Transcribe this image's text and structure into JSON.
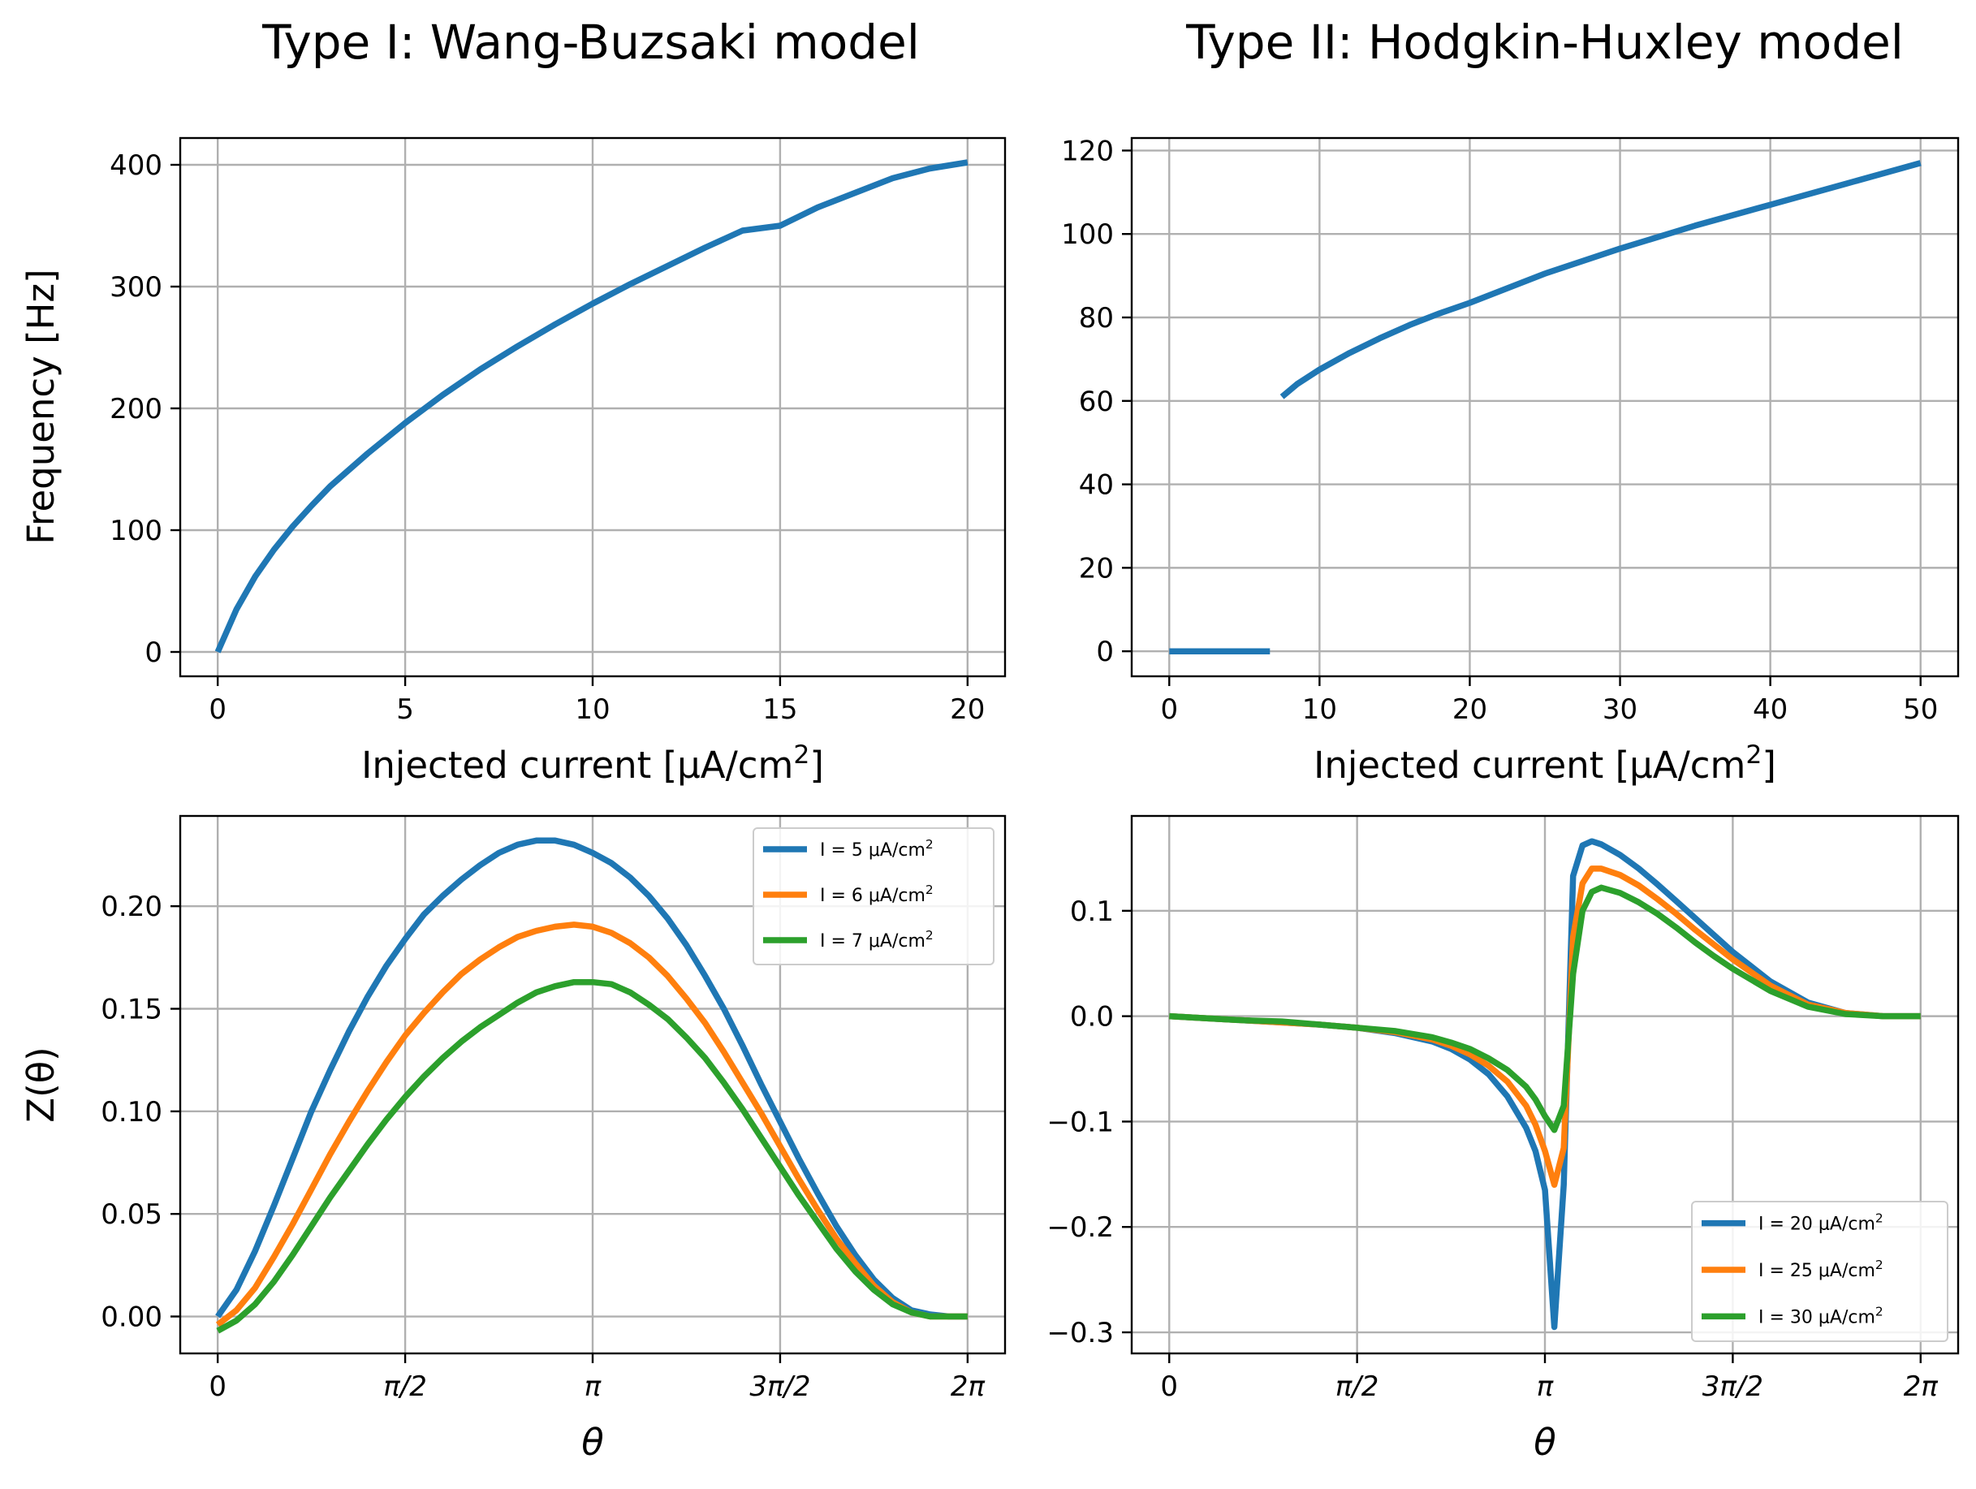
{
  "column_titles": [
    "Type I: Wang-Buzsaki model",
    "Type II: Hodgkin-Huxley model"
  ],
  "colors": {
    "blue": "#1f77b4",
    "orange": "#ff7f0e",
    "green": "#2ca02c"
  },
  "chart_data": [
    {
      "id": "wb_fi",
      "type": "line",
      "title": "Type I: Wang-Buzsaki model",
      "xlabel": "Injected current [μA/cm²]",
      "ylabel": "Frequency [Hz]",
      "xlim": [
        -1,
        21
      ],
      "ylim": [
        -20,
        422
      ],
      "xticks": [
        0,
        5,
        10,
        15,
        20
      ],
      "xtick_labels": [
        "0",
        "5",
        "10",
        "15",
        "20"
      ],
      "yticks": [
        0,
        100,
        200,
        300,
        400
      ],
      "ytick_labels": [
        "0",
        "100",
        "200",
        "300",
        "400"
      ],
      "grid": true,
      "series": [
        {
          "color": "#1f77b4",
          "x": [
            0,
            0.5,
            1,
            1.5,
            2,
            2.5,
            3,
            4,
            5,
            6,
            7,
            8,
            9,
            10,
            11,
            12,
            13,
            14,
            15,
            16,
            17,
            18,
            19,
            20
          ],
          "y": [
            0,
            35,
            62,
            84,
            103,
            120,
            136,
            163,
            188,
            211,
            232,
            251,
            269,
            286,
            302,
            317,
            332,
            346,
            350,
            365,
            377,
            389,
            397,
            402
          ]
        }
      ]
    },
    {
      "id": "hh_fi",
      "type": "line",
      "title": "Type II: Hodgkin-Huxley model",
      "xlabel": "Injected current [μA/cm²]",
      "ylabel": "",
      "xlim": [
        -2.5,
        52.5
      ],
      "ylim": [
        -6,
        123
      ],
      "xticks": [
        0,
        10,
        20,
        30,
        40,
        50
      ],
      "xtick_labels": [
        "0",
        "10",
        "20",
        "30",
        "40",
        "50"
      ],
      "yticks": [
        0,
        20,
        40,
        60,
        80,
        100,
        120
      ],
      "ytick_labels": [
        "0",
        "20",
        "40",
        "60",
        "80",
        "100",
        "120"
      ],
      "grid": true,
      "series": [
        {
          "color": "#1f77b4",
          "x": [
            0,
            1,
            2,
            3,
            4,
            5,
            6,
            6.7
          ],
          "y": [
            0,
            0,
            0,
            0,
            0,
            0,
            0,
            0
          ]
        },
        {
          "color": "#1f77b4",
          "x": [
            7.5,
            8.5,
            10,
            12,
            14,
            16,
            18,
            20,
            25,
            30,
            35,
            40,
            45,
            50
          ],
          "y": [
            61,
            64,
            67.5,
            71.5,
            75,
            78.2,
            81,
            83.5,
            90.5,
            96.5,
            102,
            107,
            112,
            117
          ]
        }
      ]
    },
    {
      "id": "wb_prc",
      "type": "line",
      "title": "",
      "xlabel": "θ",
      "ylabel": "Z(θ)",
      "xlim": [
        -0.314,
        6.597
      ],
      "ylim": [
        -0.018,
        0.244
      ],
      "xticks": [
        0,
        1.5708,
        3.1416,
        4.7124,
        6.2832
      ],
      "xtick_labels": [
        "0",
        "π/2",
        "π",
        "3π/2",
        "2π"
      ],
      "yticks": [
        0,
        0.05,
        0.1,
        0.15,
        0.2
      ],
      "ytick_labels": [
        "0.00",
        "0.05",
        "0.10",
        "0.15",
        "0.20"
      ],
      "grid": true,
      "legend": {
        "position": "upper right",
        "entries": [
          "I = 5 μA/cm²",
          "I = 6 μA/cm²",
          "I = 7 μA/cm²"
        ]
      },
      "series": [
        {
          "name": "I = 5 μA/cm²",
          "color": "#1f77b4",
          "x": [
            0,
            0.157,
            0.314,
            0.471,
            0.628,
            0.785,
            0.942,
            1.1,
            1.257,
            1.414,
            1.571,
            1.728,
            1.885,
            2.042,
            2.199,
            2.356,
            2.513,
            2.67,
            2.827,
            2.985,
            3.142,
            3.299,
            3.456,
            3.613,
            3.77,
            3.927,
            4.084,
            4.241,
            4.398,
            4.555,
            4.712,
            4.869,
            5.027,
            5.184,
            5.341,
            5.498,
            5.655,
            5.812,
            5.969,
            6.126,
            6.283
          ],
          "y": [
            0,
            0.013,
            0.032,
            0.054,
            0.077,
            0.1,
            0.12,
            0.139,
            0.156,
            0.171,
            0.184,
            0.196,
            0.205,
            0.213,
            0.22,
            0.226,
            0.23,
            0.232,
            0.232,
            0.23,
            0.226,
            0.221,
            0.214,
            0.205,
            0.194,
            0.181,
            0.166,
            0.15,
            0.132,
            0.113,
            0.095,
            0.077,
            0.06,
            0.044,
            0.03,
            0.018,
            0.009,
            0.003,
            0.001,
            0,
            0
          ]
        },
        {
          "name": "I = 6 μA/cm²",
          "color": "#ff7f0e",
          "x": [
            0,
            0.157,
            0.314,
            0.471,
            0.628,
            0.785,
            0.942,
            1.1,
            1.257,
            1.414,
            1.571,
            1.728,
            1.885,
            2.042,
            2.199,
            2.356,
            2.513,
            2.67,
            2.827,
            2.985,
            3.142,
            3.299,
            3.456,
            3.613,
            3.77,
            3.927,
            4.084,
            4.241,
            4.398,
            4.555,
            4.712,
            4.869,
            5.027,
            5.184,
            5.341,
            5.498,
            5.655,
            5.812,
            5.969,
            6.126,
            6.283
          ],
          "y": [
            -0.004,
            0.003,
            0.014,
            0.029,
            0.045,
            0.062,
            0.079,
            0.095,
            0.11,
            0.124,
            0.137,
            0.148,
            0.158,
            0.167,
            0.174,
            0.18,
            0.185,
            0.188,
            0.19,
            0.191,
            0.19,
            0.187,
            0.182,
            0.175,
            0.166,
            0.155,
            0.143,
            0.129,
            0.114,
            0.099,
            0.083,
            0.067,
            0.052,
            0.038,
            0.026,
            0.015,
            0.007,
            0.002,
            0,
            0,
            0
          ]
        },
        {
          "name": "I = 7 μA/cm²",
          "color": "#2ca02c",
          "x": [
            0,
            0.157,
            0.314,
            0.471,
            0.628,
            0.785,
            0.942,
            1.1,
            1.257,
            1.414,
            1.571,
            1.728,
            1.885,
            2.042,
            2.199,
            2.356,
            2.513,
            2.67,
            2.827,
            2.985,
            3.142,
            3.299,
            3.456,
            3.613,
            3.77,
            3.927,
            4.084,
            4.241,
            4.398,
            4.555,
            4.712,
            4.869,
            5.027,
            5.184,
            5.341,
            5.498,
            5.655,
            5.812,
            5.969,
            6.126,
            6.283
          ],
          "y": [
            -0.007,
            -0.002,
            0.006,
            0.017,
            0.03,
            0.044,
            0.058,
            0.071,
            0.084,
            0.096,
            0.107,
            0.117,
            0.126,
            0.134,
            0.141,
            0.147,
            0.153,
            0.158,
            0.161,
            0.163,
            0.163,
            0.162,
            0.158,
            0.152,
            0.145,
            0.136,
            0.126,
            0.114,
            0.101,
            0.087,
            0.073,
            0.059,
            0.046,
            0.033,
            0.022,
            0.013,
            0.006,
            0.002,
            0,
            0,
            0
          ]
        }
      ]
    },
    {
      "id": "hh_prc",
      "type": "line",
      "title": "",
      "xlabel": "θ",
      "ylabel": "",
      "xlim": [
        -0.314,
        6.597
      ],
      "ylim": [
        -0.32,
        0.19
      ],
      "xticks": [
        0,
        1.5708,
        3.1416,
        4.7124,
        6.2832
      ],
      "xtick_labels": [
        "0",
        "π/2",
        "π",
        "3π/2",
        "2π"
      ],
      "yticks": [
        -0.3,
        -0.2,
        -0.1,
        0,
        0.1
      ],
      "ytick_labels": [
        "−0.3",
        "−0.2",
        "−0.1",
        "0.0",
        "0.1"
      ],
      "grid": true,
      "legend": {
        "position": "lower right",
        "entries": [
          "I = 20 μA/cm²",
          "I = 25 μA/cm²",
          "I = 30 μA/cm²"
        ]
      },
      "series": [
        {
          "name": "I = 20 μA/cm²",
          "color": "#1f77b4",
          "x": [
            0,
            0.314,
            0.628,
            0.942,
            1.257,
            1.571,
            1.885,
            2.199,
            2.356,
            2.513,
            2.67,
            2.827,
            2.985,
            3.063,
            3.142,
            3.22,
            3.299,
            3.377,
            3.456,
            3.534,
            3.613,
            3.77,
            3.927,
            4.084,
            4.241,
            4.398,
            4.555,
            4.712,
            5.027,
            5.341,
            5.655,
            5.969,
            6.283
          ],
          "y": [
            0,
            -0.002,
            -0.004,
            -0.006,
            -0.008,
            -0.011,
            -0.016,
            -0.024,
            -0.031,
            -0.041,
            -0.055,
            -0.076,
            -0.106,
            -0.128,
            -0.165,
            -0.295,
            -0.16,
            0.133,
            0.162,
            0.166,
            0.163,
            0.153,
            0.14,
            0.125,
            0.109,
            0.093,
            0.077,
            0.061,
            0.033,
            0.013,
            0.003,
            0,
            0
          ]
        },
        {
          "name": "I = 25 μA/cm²",
          "color": "#ff7f0e",
          "x": [
            0,
            0.314,
            0.628,
            0.942,
            1.257,
            1.571,
            1.885,
            2.199,
            2.356,
            2.513,
            2.67,
            2.827,
            2.985,
            3.063,
            3.142,
            3.22,
            3.299,
            3.377,
            3.456,
            3.534,
            3.613,
            3.77,
            3.927,
            4.084,
            4.241,
            4.398,
            4.555,
            4.712,
            5.027,
            5.341,
            5.655,
            5.969,
            6.283
          ],
          "y": [
            0,
            -0.002,
            -0.004,
            -0.006,
            -0.008,
            -0.011,
            -0.015,
            -0.022,
            -0.028,
            -0.036,
            -0.047,
            -0.062,
            -0.085,
            -0.103,
            -0.128,
            -0.16,
            -0.125,
            0.075,
            0.126,
            0.14,
            0.14,
            0.134,
            0.124,
            0.111,
            0.097,
            0.082,
            0.068,
            0.054,
            0.029,
            0.011,
            0.003,
            0,
            0
          ]
        },
        {
          "name": "I = 30 μA/cm²",
          "color": "#2ca02c",
          "x": [
            0,
            0.314,
            0.628,
            0.942,
            1.257,
            1.571,
            1.885,
            2.199,
            2.356,
            2.513,
            2.67,
            2.827,
            2.985,
            3.063,
            3.142,
            3.22,
            3.299,
            3.377,
            3.456,
            3.534,
            3.613,
            3.77,
            3.927,
            4.084,
            4.241,
            4.398,
            4.555,
            4.712,
            5.027,
            5.341,
            5.655,
            5.969,
            6.283
          ],
          "y": [
            0,
            -0.002,
            -0.004,
            -0.005,
            -0.008,
            -0.011,
            -0.014,
            -0.02,
            -0.025,
            -0.031,
            -0.04,
            -0.051,
            -0.067,
            -0.079,
            -0.095,
            -0.108,
            -0.085,
            0.04,
            0.1,
            0.118,
            0.122,
            0.117,
            0.108,
            0.097,
            0.084,
            0.07,
            0.057,
            0.045,
            0.024,
            0.009,
            0.002,
            0,
            0
          ]
        }
      ]
    }
  ]
}
